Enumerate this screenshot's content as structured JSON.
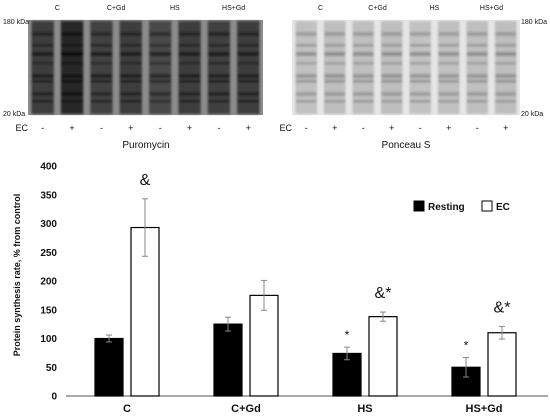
{
  "blots": {
    "left": {
      "lane_groups": [
        "C",
        "C+Gd",
        "HS",
        "HS+Gd"
      ],
      "marker_top": "180 kDa",
      "marker_bottom": "20 kDa",
      "ec_label": "EC",
      "ec_signs": [
        "-",
        "+",
        "-",
        "+",
        "-",
        "+",
        "-",
        "+"
      ],
      "caption": "Puromycin",
      "lane_intensity": [
        0.75,
        1.0,
        0.68,
        0.74,
        0.58,
        0.72,
        0.7,
        0.73
      ]
    },
    "right": {
      "lane_groups": [
        "C",
        "C+Gd",
        "HS",
        "HS+Gd"
      ],
      "marker_top": "180 kDa",
      "marker_bottom": "20 kDa",
      "ec_label": "EC",
      "ec_signs": [
        "-",
        "+",
        "-",
        "+",
        "-",
        "+",
        "-",
        "+"
      ],
      "caption": "Ponceau S",
      "lane_intensity": [
        0.45,
        0.5,
        0.48,
        0.5,
        0.44,
        0.47,
        0.48,
        0.5
      ]
    }
  },
  "chart_data": {
    "type": "bar",
    "categories": [
      "C",
      "C+Gd",
      "HS",
      "HS+Gd"
    ],
    "series": [
      {
        "name": "Resting",
        "color": "#000000",
        "values": [
          100,
          125,
          74,
          50
        ],
        "errors": [
          6,
          12,
          11,
          17
        ]
      },
      {
        "name": "EC",
        "color": "#ffffff",
        "values": [
          293,
          175,
          138,
          110
        ],
        "errors": [
          50,
          26,
          8,
          11
        ]
      }
    ],
    "annotations": [
      {
        "category": "C",
        "series": "EC",
        "text": "&"
      },
      {
        "category": "HS",
        "series": "Resting",
        "text": "*"
      },
      {
        "category": "HS",
        "series": "EC",
        "text": "&*"
      },
      {
        "category": "HS+Gd",
        "series": "Resting",
        "text": "*"
      },
      {
        "category": "HS+Gd",
        "series": "EC",
        "text": "&*"
      }
    ],
    "title": "",
    "xlabel": "",
    "ylabel": "Protein synthesis rate, % from control",
    "ylim": [
      0,
      400
    ],
    "yticks": [
      0,
      50,
      100,
      150,
      200,
      250,
      300,
      350,
      400
    ],
    "grid": false,
    "legend": "top-right"
  }
}
